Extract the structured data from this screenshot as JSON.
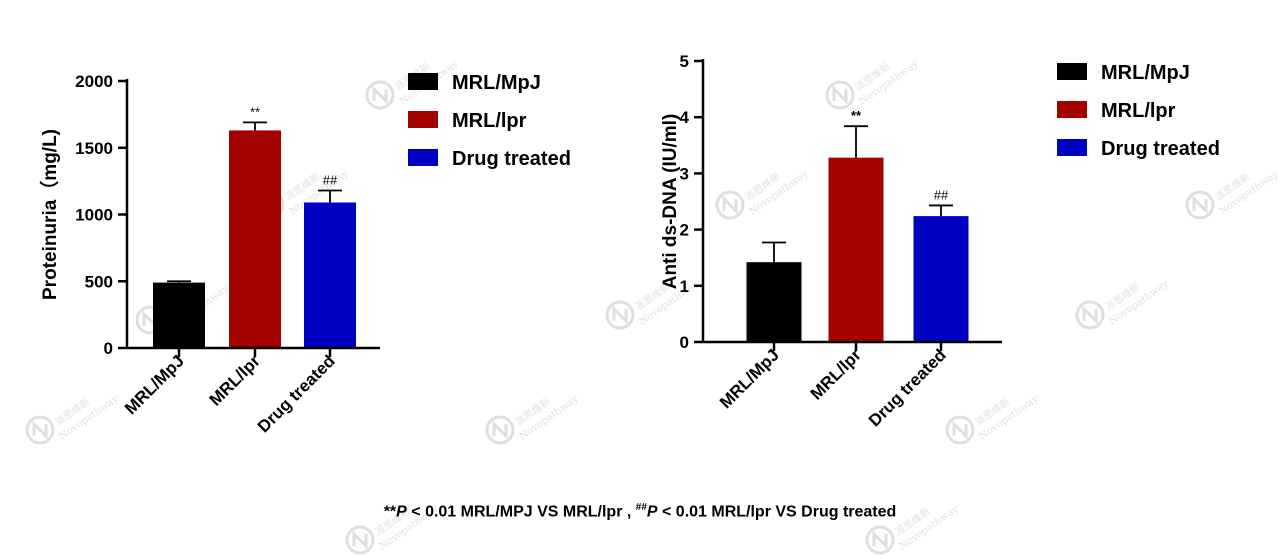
{
  "chart_data": [
    {
      "type": "bar",
      "categories": [
        "MRL/MpJ",
        "MRL/lpr",
        "Drug treated"
      ],
      "values": [
        490,
        1630,
        1090
      ],
      "error": [
        10,
        60,
        90
      ],
      "significance": [
        "",
        "**",
        "##"
      ],
      "colors": [
        "#000000",
        "#a30000",
        "#0000c2"
      ],
      "ylabel": "Proteinuria（mg/L)",
      "ylim": [
        0,
        2000
      ],
      "yticks": [
        0,
        500,
        1000,
        1500,
        2000
      ],
      "legend": [
        "MRL/MpJ",
        "MRL/lpr",
        "Drug treated"
      ],
      "legend_position": "right"
    },
    {
      "type": "bar",
      "categories": [
        "MRL/MpJ",
        "MRL/lpr",
        "Drug treated"
      ],
      "values": [
        1.42,
        3.28,
        2.24
      ],
      "error": [
        0.35,
        0.56,
        0.19
      ],
      "significance": [
        "",
        "**",
        "##"
      ],
      "colors": [
        "#000000",
        "#a30000",
        "#0000c2"
      ],
      "ylabel": "Anti ds-DNA (IU/ml)",
      "ylim": [
        0,
        5
      ],
      "yticks": [
        0,
        1,
        2,
        3,
        4,
        5
      ],
      "legend": [
        "MRL/MpJ",
        "MRL/lpr",
        "Drug treated"
      ],
      "legend_position": "right"
    }
  ],
  "footnote": {
    "star_mark": "**",
    "p1": "P",
    "text1": " < 0.01 MRL/MPJ VS MRL/lpr , ",
    "hash_mark": "##",
    "p2": "P",
    "text2": " < 0.01 MRL/lpr VS Drug treated"
  },
  "watermark": {
    "cn": "派思维新",
    "en": "Novopathway"
  }
}
